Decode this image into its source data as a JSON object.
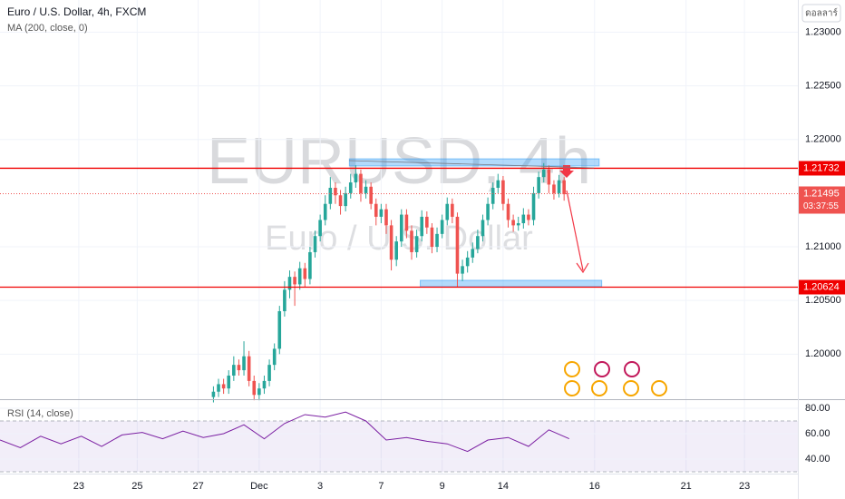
{
  "header": {
    "symbol": "Euro / U.S. Dollar, 4h, FXCM",
    "indicator": "MA (200, close, 0)",
    "currency_button": "ดอลลาร์"
  },
  "chart_data": [
    {
      "type": "candlestick",
      "watermark": "EURUSD, 4h",
      "watermark_sub": "Euro / U.S. Dollar",
      "up_color": "#26a69a",
      "down_color": "#ef5350",
      "x": [
        42,
        43,
        44,
        45,
        46,
        47,
        48,
        49,
        50,
        51,
        52,
        53,
        54,
        55,
        56,
        57,
        58,
        59,
        60,
        61,
        62,
        63,
        64,
        65,
        66,
        67,
        68,
        69,
        70,
        71,
        72,
        73,
        74,
        75,
        76,
        77,
        78,
        79,
        80,
        81,
        82,
        83,
        84,
        85,
        86,
        87,
        88,
        89,
        90,
        91,
        92,
        93,
        94,
        95,
        96,
        97,
        98,
        99,
        100,
        101,
        102,
        103,
        104,
        105,
        106,
        107,
        108,
        109,
        110,
        111
      ],
      "open": [
        1.196,
        1.1965,
        1.1972,
        1.1968,
        1.198,
        1.199,
        1.1985,
        1.1998,
        1.1975,
        1.1962,
        1.1968,
        1.1975,
        1.199,
        1.2005,
        1.204,
        1.206,
        1.2072,
        1.2065,
        1.208,
        1.207,
        1.2095,
        1.211,
        1.2125,
        1.214,
        1.2155,
        1.2148,
        1.2138,
        1.215,
        1.216,
        1.2168,
        1.215,
        1.2156,
        1.214,
        1.2128,
        1.2135,
        1.212,
        1.2088,
        1.2105,
        1.213,
        1.2115,
        1.2095,
        1.211,
        1.2128,
        1.2118,
        1.21,
        1.2112,
        1.2125,
        1.214,
        1.2128,
        1.2075,
        1.2082,
        1.209,
        1.2098,
        1.211,
        1.2125,
        1.214,
        1.2155,
        1.2162,
        1.214,
        1.2125,
        1.212,
        1.2122,
        1.213,
        1.2125,
        1.215,
        1.2165,
        1.2172,
        1.2158,
        1.215,
        1.2162
      ],
      "high": [
        1.197,
        1.1977,
        1.1977,
        1.1985,
        1.1998,
        1.1995,
        1.2012,
        1.2003,
        1.198,
        1.1973,
        1.198,
        1.1995,
        1.201,
        1.2045,
        1.2068,
        1.2078,
        1.2077,
        1.2086,
        1.2085,
        1.21,
        1.2115,
        1.213,
        1.2148,
        1.2165,
        1.216,
        1.2153,
        1.2156,
        1.2168,
        1.2176,
        1.2172,
        1.2162,
        1.216,
        1.2145,
        1.214,
        1.214,
        1.2125,
        1.211,
        1.2135,
        1.2135,
        1.212,
        1.2116,
        1.2134,
        1.2133,
        1.2122,
        1.2118,
        1.213,
        1.2146,
        1.2145,
        1.2132,
        1.2088,
        1.2096,
        1.2104,
        1.2116,
        1.213,
        1.2146,
        1.216,
        1.2168,
        1.2166,
        1.2145,
        1.213,
        1.2128,
        1.2136,
        1.2135,
        1.2156,
        1.217,
        1.2178,
        1.2176,
        1.2162,
        1.2167,
        1.2165
      ],
      "low": [
        1.1955,
        1.196,
        1.1963,
        1.1963,
        1.1975,
        1.198,
        1.198,
        1.197,
        1.1957,
        1.1957,
        1.1963,
        1.197,
        1.1985,
        1.2,
        1.2035,
        1.2052,
        1.2045,
        1.206,
        1.2062,
        1.2065,
        1.209,
        1.2105,
        1.212,
        1.2135,
        1.214,
        1.213,
        1.2133,
        1.2145,
        1.2155,
        1.2142,
        1.2145,
        1.2135,
        1.212,
        1.2122,
        1.2112,
        1.2078,
        1.2082,
        1.21,
        1.2108,
        1.2088,
        1.209,
        1.2105,
        1.2112,
        1.2094,
        1.2095,
        1.2108,
        1.212,
        1.2122,
        1.2062,
        1.2068,
        1.2076,
        1.2085,
        1.2094,
        1.2105,
        1.212,
        1.2135,
        1.215,
        1.2134,
        1.2118,
        1.2114,
        1.2115,
        1.2117,
        1.212,
        1.212,
        1.2145,
        1.216,
        1.215,
        1.2144,
        1.2146,
        1.2143
      ],
      "close": [
        1.1965,
        1.1972,
        1.1968,
        1.198,
        1.199,
        1.1985,
        1.1998,
        1.1975,
        1.1962,
        1.1968,
        1.1975,
        1.199,
        1.2005,
        1.204,
        1.206,
        1.2072,
        1.2065,
        1.208,
        1.207,
        1.2095,
        1.211,
        1.2125,
        1.214,
        1.2155,
        1.2148,
        1.2138,
        1.215,
        1.216,
        1.2168,
        1.215,
        1.2156,
        1.214,
        1.2128,
        1.2135,
        1.212,
        1.2088,
        1.2105,
        1.213,
        1.2115,
        1.2095,
        1.211,
        1.2128,
        1.2118,
        1.21,
        1.2112,
        1.2125,
        1.214,
        1.2128,
        1.2075,
        1.2082,
        1.209,
        1.2098,
        1.211,
        1.2125,
        1.214,
        1.2155,
        1.2162,
        1.214,
        1.2125,
        1.212,
        1.2122,
        1.213,
        1.2125,
        1.215,
        1.2165,
        1.2172,
        1.2158,
        1.215,
        1.2162,
        1.2149
      ],
      "xlim": [
        0,
        157
      ],
      "xticks": [
        {
          "value": 15.5,
          "label": "23"
        },
        {
          "value": 27,
          "label": "25"
        },
        {
          "value": 39,
          "label": "27"
        },
        {
          "value": 51,
          "label": "Dec"
        },
        {
          "value": 63,
          "label": "3"
        },
        {
          "value": 75,
          "label": "7"
        },
        {
          "value": 87,
          "label": "9"
        },
        {
          "value": 99,
          "label": "14"
        },
        {
          "value": 117,
          "label": "16"
        },
        {
          "value": 135,
          "label": "21"
        },
        {
          "value": 146.5,
          "label": "23"
        }
      ],
      "ylim": [
        1.1958,
        1.233
      ],
      "yticks": [
        {
          "value": 1.23,
          "label": "1.23000"
        },
        {
          "value": 1.225,
          "label": "1.22500"
        },
        {
          "value": 1.22,
          "label": "1.22000"
        },
        {
          "value": 1.21,
          "label": "1.21000"
        },
        {
          "value": 1.205,
          "label": "1.20500"
        },
        {
          "value": 1.2,
          "label": "1.20000"
        }
      ],
      "grid": true,
      "hlines": [
        {
          "value": 1.21732,
          "label": "1.21732",
          "color": "#f00000"
        },
        {
          "value": 1.20624,
          "label": "1.20624",
          "color": "#f00000"
        }
      ],
      "last_price": {
        "value": 1.21495,
        "label": "1.21495",
        "countdown": "03:37:55",
        "color": "#ef5350"
      },
      "zones": [
        {
          "from": 1.21753,
          "to": 1.2182,
          "start": 68.75,
          "end": 117.9
        },
        {
          "from": 1.20628,
          "to": 1.20688,
          "start": 82.7,
          "end": 118.4
        }
      ]
    },
    {
      "type": "line",
      "title": "RSI (14, close)",
      "color": "#7b1fa2",
      "x": [
        0,
        4,
        8,
        12,
        16,
        20,
        24,
        28,
        32,
        36,
        40,
        44,
        48,
        52,
        56,
        60,
        64,
        68,
        72,
        76,
        80,
        84,
        88,
        92,
        96,
        100,
        104,
        108,
        112
      ],
      "values": [
        55,
        49,
        58,
        52,
        58,
        50,
        59,
        61,
        56,
        62,
        57,
        60,
        67,
        56,
        68,
        75,
        73,
        77,
        70,
        55,
        57,
        54,
        52,
        46,
        55,
        57,
        50,
        63,
        56
      ],
      "xlim": [
        0,
        157
      ],
      "ylim": [
        28.6,
        86.4
      ],
      "yticks": [
        {
          "value": 80,
          "label": "80.00"
        },
        {
          "value": 60,
          "label": "60.00"
        },
        {
          "value": 40,
          "label": "40.00"
        }
      ],
      "band": [
        30,
        70
      ]
    }
  ]
}
